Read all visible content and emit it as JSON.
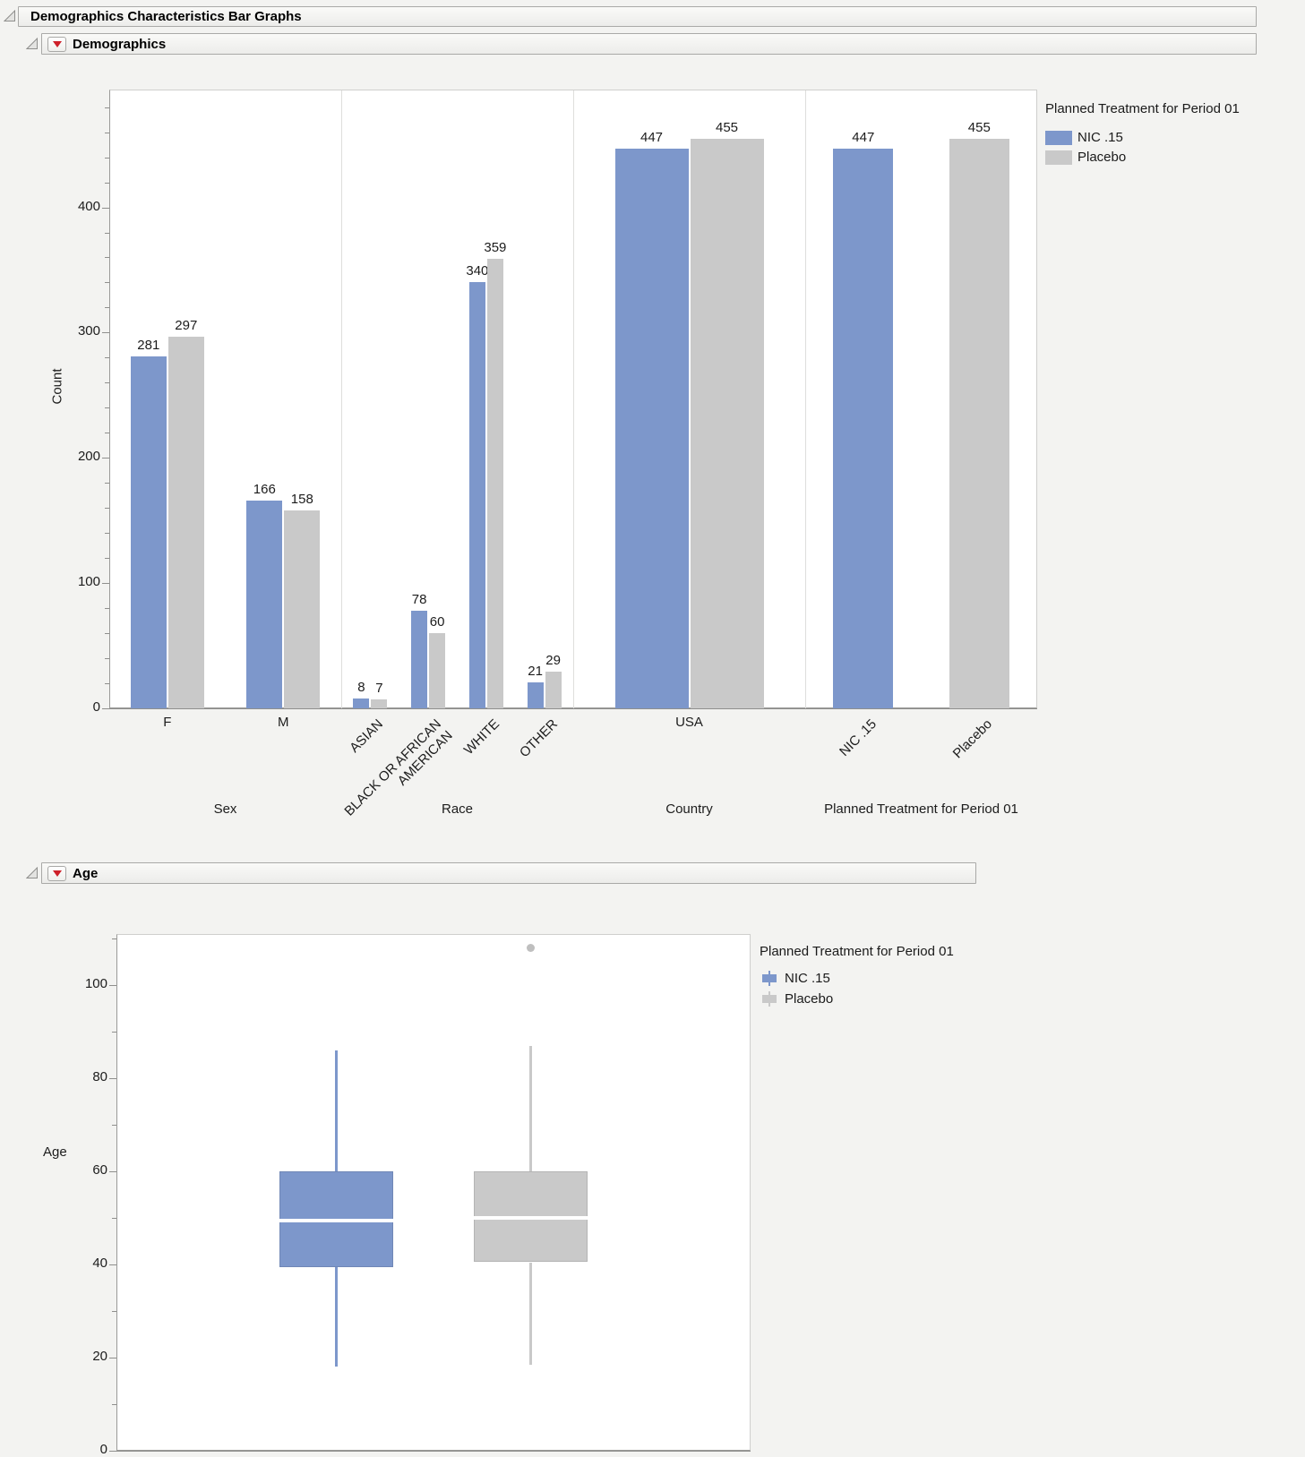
{
  "outline": {
    "root_title": "Demographics Characteristics Bar Graphs",
    "demographics_title": "Demographics",
    "age_title": "Age"
  },
  "colors": {
    "nic_blue": "#7D97CB",
    "placebo_gray": "#C9C9C9",
    "red_triangle": "#CE2029",
    "outlier_gray": "#BFBFBF"
  },
  "chart_data": [
    {
      "type": "bar",
      "ylabel": "Count",
      "ylim": [
        0,
        494
      ],
      "yticks": [
        0,
        100,
        200,
        300,
        400
      ],
      "minor_tick_step": 20,
      "grid": false,
      "legend_position": "right",
      "legend_title": "Planned Treatment for Period 01",
      "series": [
        {
          "name": "NIC .15",
          "color": "#7D97CB"
        },
        {
          "name": "Placebo",
          "color": "#C9C9C9"
        }
      ],
      "groups": [
        {
          "label": "Sex",
          "rotate_labels": false,
          "categories": [
            "F",
            "M"
          ],
          "values": [
            [
              281,
              297
            ],
            [
              166,
              158
            ]
          ]
        },
        {
          "label": "Race",
          "rotate_labels": true,
          "categories": [
            "ASIAN",
            "BLACK OR AFRICAN AMERICAN",
            "WHITE",
            "OTHER"
          ],
          "values": [
            [
              8,
              7
            ],
            [
              78,
              60
            ],
            [
              340,
              359
            ],
            [
              21,
              29
            ]
          ]
        },
        {
          "label": "Country",
          "rotate_labels": false,
          "categories": [
            "USA"
          ],
          "values": [
            [
              447,
              455
            ]
          ]
        },
        {
          "label": "Planned Treatment for Period 01",
          "rotate_labels": true,
          "categories": [
            "NIC .15",
            "Placebo"
          ],
          "values": [
            [
              447,
              null
            ],
            [
              null,
              455
            ]
          ]
        }
      ]
    },
    {
      "type": "boxplot",
      "ylabel": "Age",
      "ylim": [
        0,
        111
      ],
      "yticks": [
        0,
        20,
        40,
        60,
        80,
        100
      ],
      "minor_tick_step": 10,
      "grid": false,
      "legend_position": "right",
      "legend_title": "Planned Treatment for Period 01",
      "series": [
        {
          "name": "NIC .15",
          "color": "#7D97CB",
          "whisker_low": 18,
          "q1": 39.5,
          "median": 49.5,
          "q3": 60,
          "whisker_high": 86,
          "outliers": []
        },
        {
          "name": "Placebo",
          "color": "#C9C9C9",
          "whisker_low": 18.5,
          "q1": 40.5,
          "median": 50,
          "q3": 60,
          "whisker_high": 87,
          "outliers": [
            108
          ]
        }
      ]
    }
  ]
}
